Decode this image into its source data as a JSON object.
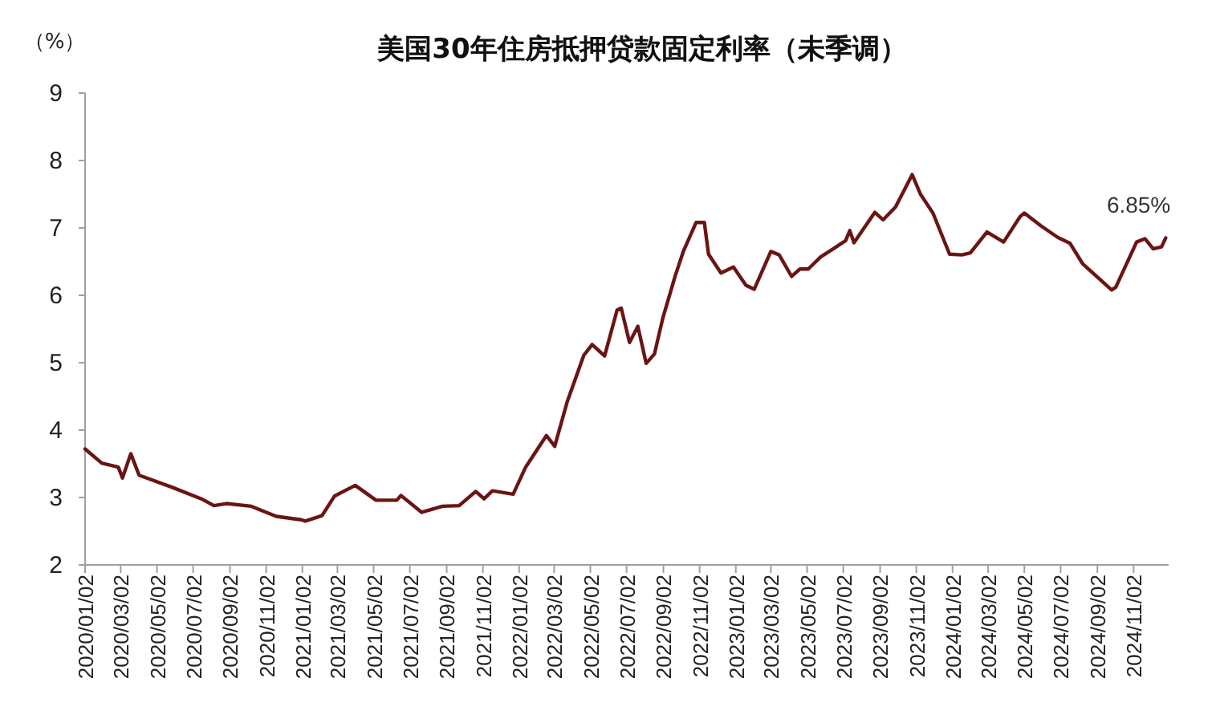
{
  "chart_data": {
    "type": "line",
    "title": "美国30年住房抵押贷款固定利率（未季调）",
    "ylabel": "（%）",
    "x": [
      "2020-01-02",
      "2020-01-30",
      "2020-02-27",
      "2020-03-05",
      "2020-03-19",
      "2020-04-02",
      "2020-05-28",
      "2020-07-16",
      "2020-08-06",
      "2020-08-27",
      "2020-10-08",
      "2020-11-19",
      "2020-12-31",
      "2021-01-07",
      "2021-02-04",
      "2021-02-25",
      "2021-04-01",
      "2021-05-06",
      "2021-06-10",
      "2021-06-17",
      "2021-07-22",
      "2021-08-26",
      "2021-09-23",
      "2021-10-21",
      "2021-11-04",
      "2021-11-18",
      "2021-12-23",
      "2022-01-13",
      "2022-02-17",
      "2022-03-03",
      "2022-03-24",
      "2022-04-21",
      "2022-05-05",
      "2022-05-26",
      "2022-06-16",
      "2022-06-23",
      "2022-07-07",
      "2022-07-21",
      "2022-08-04",
      "2022-08-18",
      "2022-09-01",
      "2022-09-22",
      "2022-10-06",
      "2022-10-27",
      "2022-11-10",
      "2022-11-17",
      "2022-12-08",
      "2022-12-29",
      "2023-01-19",
      "2023-02-02",
      "2023-03-02",
      "2023-03-16",
      "2023-04-06",
      "2023-04-20",
      "2023-05-04",
      "2023-05-25",
      "2023-06-15",
      "2023-07-06",
      "2023-07-13",
      "2023-07-20",
      "2023-08-24",
      "2023-09-07",
      "2023-09-28",
      "2023-10-26",
      "2023-11-09",
      "2023-11-30",
      "2023-12-28",
      "2024-01-18",
      "2024-02-01",
      "2024-02-29",
      "2024-03-28",
      "2024-04-25",
      "2024-05-02",
      "2024-05-30",
      "2024-06-27",
      "2024-07-18",
      "2024-08-08",
      "2024-09-26",
      "2024-10-03",
      "2024-11-07",
      "2024-11-21",
      "2024-12-05",
      "2024-12-19",
      "2024-12-26"
    ],
    "series": [
      {
        "color": "#6b1414",
        "values": [
          3.72,
          3.51,
          3.45,
          3.29,
          3.65,
          3.33,
          3.15,
          2.98,
          2.88,
          2.91,
          2.87,
          2.72,
          2.67,
          2.65,
          2.73,
          3.02,
          3.18,
          2.96,
          2.96,
          3.03,
          2.78,
          2.87,
          2.88,
          3.09,
          2.98,
          3.1,
          3.05,
          3.45,
          3.92,
          3.76,
          4.42,
          5.11,
          5.27,
          5.1,
          5.78,
          5.81,
          5.3,
          5.54,
          4.99,
          5.13,
          5.66,
          6.29,
          6.66,
          7.08,
          7.08,
          6.61,
          6.33,
          6.42,
          6.15,
          6.09,
          6.65,
          6.6,
          6.28,
          6.39,
          6.39,
          6.57,
          6.69,
          6.81,
          6.96,
          6.78,
          7.23,
          7.12,
          7.31,
          7.79,
          7.5,
          7.22,
          6.61,
          6.6,
          6.63,
          6.94,
          6.79,
          7.17,
          7.22,
          7.03,
          6.86,
          6.77,
          6.47,
          6.08,
          6.12,
          6.79,
          6.84,
          6.69,
          6.72,
          6.85
        ]
      }
    ],
    "xlim": [
      "2020-01-02",
      "2024-12-31"
    ],
    "xticks": [
      {
        "value": "2020-01-02",
        "label": "2020/01/02"
      },
      {
        "value": "2020-03-02",
        "label": "2020/03/02"
      },
      {
        "value": "2020-05-02",
        "label": "2020/05/02"
      },
      {
        "value": "2020-07-02",
        "label": "2020/07/02"
      },
      {
        "value": "2020-09-02",
        "label": "2020/09/02"
      },
      {
        "value": "2020-11-02",
        "label": "2020/11/02"
      },
      {
        "value": "2021-01-02",
        "label": "2021/01/02"
      },
      {
        "value": "2021-03-02",
        "label": "2021/03/02"
      },
      {
        "value": "2021-05-02",
        "label": "2021/05/02"
      },
      {
        "value": "2021-07-02",
        "label": "2021/07/02"
      },
      {
        "value": "2021-09-02",
        "label": "2021/09/02"
      },
      {
        "value": "2021-11-02",
        "label": "2021/11/02"
      },
      {
        "value": "2022-01-02",
        "label": "2022/01/02"
      },
      {
        "value": "2022-03-02",
        "label": "2022/03/02"
      },
      {
        "value": "2022-05-02",
        "label": "2022/05/02"
      },
      {
        "value": "2022-07-02",
        "label": "2022/07/02"
      },
      {
        "value": "2022-09-02",
        "label": "2022/09/02"
      },
      {
        "value": "2022-11-02",
        "label": "2022/11/02"
      },
      {
        "value": "2023-01-02",
        "label": "2023/01/02"
      },
      {
        "value": "2023-03-02",
        "label": "2023/03/02"
      },
      {
        "value": "2023-05-02",
        "label": "2023/05/02"
      },
      {
        "value": "2023-07-02",
        "label": "2023/07/02"
      },
      {
        "value": "2023-09-02",
        "label": "2023/09/02"
      },
      {
        "value": "2023-11-02",
        "label": "2023/11/02"
      },
      {
        "value": "2024-01-02",
        "label": "2024/01/02"
      },
      {
        "value": "2024-03-02",
        "label": "2024/03/02"
      },
      {
        "value": "2024-05-02",
        "label": "2024/05/02"
      },
      {
        "value": "2024-07-02",
        "label": "2024/07/02"
      },
      {
        "value": "2024-09-02",
        "label": "2024/09/02"
      },
      {
        "value": "2024-11-02",
        "label": "2024/11/02"
      }
    ],
    "ylim": [
      2,
      9
    ],
    "yticks": [
      2,
      3,
      4,
      5,
      6,
      7,
      8,
      9
    ],
    "annotations": [
      {
        "text": "6.85%",
        "x": "2024-12-26",
        "y": 6.85
      }
    ]
  }
}
